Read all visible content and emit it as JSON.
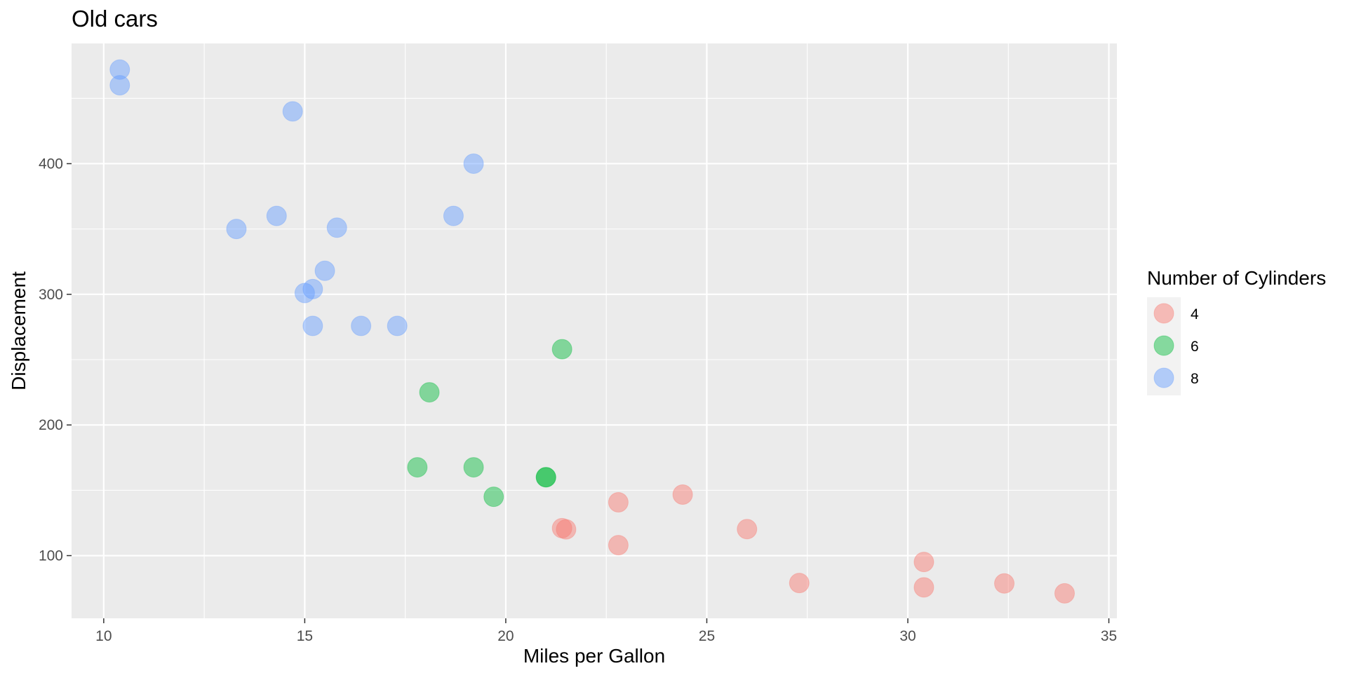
{
  "chart_data": {
    "type": "scatter",
    "title": "Old cars",
    "xlabel": "Miles per Gallon",
    "ylabel": "Displacement",
    "xlim": [
      9.2,
      35.2
    ],
    "ylim": [
      52,
      492
    ],
    "xticks": [
      10,
      15,
      20,
      25,
      30,
      35
    ],
    "yticks": [
      100,
      200,
      300,
      400
    ],
    "grid": true,
    "legend_title": "Number of Cylinders",
    "legend_position": "right",
    "series": [
      {
        "name": "4",
        "color": "#F8766D",
        "points": [
          {
            "x": 22.8,
            "y": 108
          },
          {
            "x": 24.4,
            "y": 146.7
          },
          {
            "x": 22.8,
            "y": 140.8
          },
          {
            "x": 32.4,
            "y": 78.7
          },
          {
            "x": 30.4,
            "y": 75.7
          },
          {
            "x": 33.9,
            "y": 71.1
          },
          {
            "x": 21.5,
            "y": 120.1
          },
          {
            "x": 27.3,
            "y": 79
          },
          {
            "x": 26.0,
            "y": 120.3
          },
          {
            "x": 30.4,
            "y": 95.1
          },
          {
            "x": 21.4,
            "y": 121
          }
        ]
      },
      {
        "name": "6",
        "color": "#00BA38",
        "points": [
          {
            "x": 21.0,
            "y": 160
          },
          {
            "x": 21.0,
            "y": 160
          },
          {
            "x": 21.4,
            "y": 258
          },
          {
            "x": 18.1,
            "y": 225
          },
          {
            "x": 19.2,
            "y": 167.6
          },
          {
            "x": 17.8,
            "y": 167.6
          },
          {
            "x": 19.7,
            "y": 145
          }
        ]
      },
      {
        "name": "8",
        "color": "#619CFF",
        "points": [
          {
            "x": 18.7,
            "y": 360
          },
          {
            "x": 14.3,
            "y": 360
          },
          {
            "x": 16.4,
            "y": 275.8
          },
          {
            "x": 17.3,
            "y": 275.8
          },
          {
            "x": 15.2,
            "y": 275.8
          },
          {
            "x": 10.4,
            "y": 472
          },
          {
            "x": 10.4,
            "y": 460
          },
          {
            "x": 14.7,
            "y": 440
          },
          {
            "x": 15.5,
            "y": 318
          },
          {
            "x": 15.2,
            "y": 304
          },
          {
            "x": 13.3,
            "y": 350
          },
          {
            "x": 19.2,
            "y": 400
          },
          {
            "x": 15.8,
            "y": 351
          },
          {
            "x": 15.0,
            "y": 301
          }
        ]
      }
    ]
  }
}
